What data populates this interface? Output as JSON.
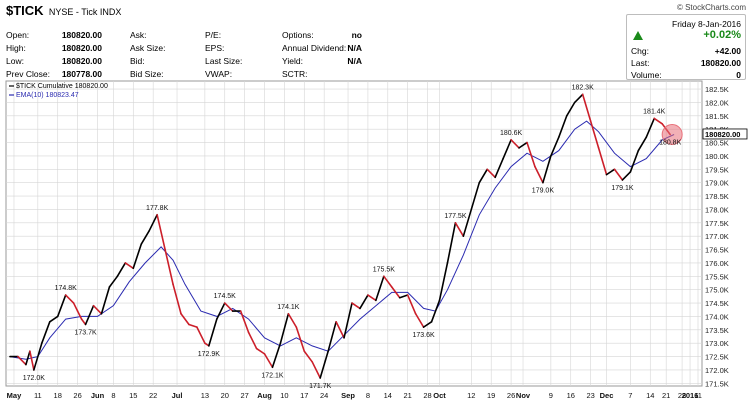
{
  "header": {
    "symbol": "$TICK",
    "description": "NYSE - Tick INDX",
    "brand": "© StockCharts.com"
  },
  "stats": {
    "open_label": "Open:",
    "open": "180820.00",
    "high_label": "High:",
    "high": "180820.00",
    "low_label": "Low:",
    "low": "180820.00",
    "prev_close_label": "Prev Close:",
    "prev_close": "180778.00",
    "ask_label": "Ask:",
    "ask_size_label": "Ask Size:",
    "bid_label": "Bid:",
    "bid_size_label": "Bid Size:",
    "pe_label": "P/E:",
    "eps_label": "EPS:",
    "last_size_label": "Last Size:",
    "vwap_label": "VWAP:",
    "options_label": "Options:",
    "options": "no",
    "annual_dividend_label": "Annual Dividend:",
    "annual_dividend": "N/A",
    "yield_label": "Yield:",
    "yield": "N/A",
    "sctr_label": "SCTR:"
  },
  "quote": {
    "day": "Friday  8-Jan-2016",
    "change_pct": "+0.02%",
    "chg_label": "Chg:",
    "chg": "+42.00",
    "last_label": "Last:",
    "last": "180820.00",
    "volume_label": "Volume:",
    "volume": "0",
    "up_color": "#1a8a1a"
  },
  "chart_data": {
    "type": "line",
    "legend": [
      {
        "text": "$TICK Cumulative 180820.00",
        "color": "#000000"
      },
      {
        "text": "EMA(10) 180823.47",
        "color": "#2a2ab0"
      }
    ],
    "colors": {
      "up": "#000000",
      "down": "#cc1f2a",
      "ema": "#2a2ab0",
      "grid": "#d6d6d6",
      "highlight": "#e8707a"
    },
    "ylim": [
      171.4,
      182.8
    ],
    "yticks": [
      "171.5K",
      "172.0K",
      "172.5K",
      "173.0K",
      "173.5K",
      "174.0K",
      "174.5K",
      "175.0K",
      "175.5K",
      "176.0K",
      "176.5K",
      "177.0K",
      "177.5K",
      "178.0K",
      "178.5K",
      "179.0K",
      "179.5K",
      "180.0K",
      "180.5K",
      "181.0K",
      "181.5K",
      "182.0K",
      "182.5K"
    ],
    "ytick_values": [
      171.5,
      172.0,
      172.5,
      173.0,
      173.5,
      174.0,
      174.5,
      175.0,
      175.5,
      176.0,
      176.5,
      177.0,
      177.5,
      178.0,
      178.5,
      179.0,
      179.5,
      180.0,
      180.5,
      181.0,
      181.5,
      182.0,
      182.5
    ],
    "xlim": [
      0,
      171
    ],
    "xticks": [
      {
        "x": 1,
        "label": "May",
        "bold": true
      },
      {
        "x": 7,
        "label": "11"
      },
      {
        "x": 12,
        "label": "18"
      },
      {
        "x": 17,
        "label": "26"
      },
      {
        "x": 22,
        "label": "Jun",
        "bold": true
      },
      {
        "x": 26,
        "label": "8"
      },
      {
        "x": 31,
        "label": "15"
      },
      {
        "x": 36,
        "label": "22"
      },
      {
        "x": 42,
        "label": "Jul",
        "bold": true
      },
      {
        "x": 49,
        "label": "13"
      },
      {
        "x": 54,
        "label": "20"
      },
      {
        "x": 59,
        "label": "27"
      },
      {
        "x": 64,
        "label": "Aug",
        "bold": true
      },
      {
        "x": 69,
        "label": "10"
      },
      {
        "x": 74,
        "label": "17"
      },
      {
        "x": 79,
        "label": "24"
      },
      {
        "x": 85,
        "label": "Sep",
        "bold": true
      },
      {
        "x": 90,
        "label": "8"
      },
      {
        "x": 95,
        "label": "14"
      },
      {
        "x": 100,
        "label": "21"
      },
      {
        "x": 105,
        "label": "28"
      },
      {
        "x": 108,
        "label": "Oct",
        "bold": true
      },
      {
        "x": 116,
        "label": "12"
      },
      {
        "x": 121,
        "label": "19"
      },
      {
        "x": 126,
        "label": "26"
      },
      {
        "x": 129,
        "label": "Nov",
        "bold": true
      },
      {
        "x": 136,
        "label": "9"
      },
      {
        "x": 141,
        "label": "16"
      },
      {
        "x": 146,
        "label": "23"
      },
      {
        "x": 150,
        "label": "Dec",
        "bold": true
      },
      {
        "x": 156,
        "label": "7"
      },
      {
        "x": 161,
        "label": "14"
      },
      {
        "x": 165,
        "label": "21"
      },
      {
        "x": 169,
        "label": "28"
      },
      {
        "x": 171,
        "label": "2016",
        "bold": true
      }
    ],
    "x_extra_ticks": [
      {
        "x": 173,
        "label": "11"
      }
    ],
    "x_extended": 173,
    "series": [
      {
        "x": 0,
        "y": 172.5
      },
      {
        "x": 2,
        "y": 172.5
      },
      {
        "x": 4,
        "y": 172.2
      },
      {
        "x": 5,
        "y": 172.7
      },
      {
        "x": 6,
        "y": 172.0
      },
      {
        "x": 8,
        "y": 173.0
      },
      {
        "x": 10,
        "y": 173.8
      },
      {
        "x": 12,
        "y": 174.0
      },
      {
        "x": 14,
        "y": 174.8
      },
      {
        "x": 16,
        "y": 174.5
      },
      {
        "x": 17,
        "y": 174.2
      },
      {
        "x": 18,
        "y": 173.9
      },
      {
        "x": 19,
        "y": 173.7
      },
      {
        "x": 21,
        "y": 174.4
      },
      {
        "x": 23,
        "y": 174.1
      },
      {
        "x": 25,
        "y": 175.1
      },
      {
        "x": 27,
        "y": 175.5
      },
      {
        "x": 29,
        "y": 176.0
      },
      {
        "x": 31,
        "y": 175.8
      },
      {
        "x": 33,
        "y": 176.7
      },
      {
        "x": 35,
        "y": 177.2
      },
      {
        "x": 37,
        "y": 177.8
      },
      {
        "x": 39,
        "y": 176.5
      },
      {
        "x": 41,
        "y": 175.2
      },
      {
        "x": 43,
        "y": 174.1
      },
      {
        "x": 45,
        "y": 173.7
      },
      {
        "x": 47,
        "y": 173.6
      },
      {
        "x": 49,
        "y": 173.0
      },
      {
        "x": 50,
        "y": 172.9
      },
      {
        "x": 52,
        "y": 173.9
      },
      {
        "x": 54,
        "y": 174.5
      },
      {
        "x": 56,
        "y": 174.2
      },
      {
        "x": 58,
        "y": 174.2
      },
      {
        "x": 60,
        "y": 173.4
      },
      {
        "x": 62,
        "y": 172.8
      },
      {
        "x": 64,
        "y": 172.6
      },
      {
        "x": 66,
        "y": 172.1
      },
      {
        "x": 68,
        "y": 173.0
      },
      {
        "x": 70,
        "y": 174.1
      },
      {
        "x": 72,
        "y": 173.6
      },
      {
        "x": 74,
        "y": 172.7
      },
      {
        "x": 76,
        "y": 172.3
      },
      {
        "x": 78,
        "y": 171.7
      },
      {
        "x": 80,
        "y": 172.7
      },
      {
        "x": 82,
        "y": 173.8
      },
      {
        "x": 84,
        "y": 173.2
      },
      {
        "x": 86,
        "y": 174.5
      },
      {
        "x": 88,
        "y": 174.3
      },
      {
        "x": 90,
        "y": 174.8
      },
      {
        "x": 92,
        "y": 174.6
      },
      {
        "x": 94,
        "y": 175.5
      },
      {
        "x": 96,
        "y": 175.1
      },
      {
        "x": 98,
        "y": 174.7
      },
      {
        "x": 100,
        "y": 174.8
      },
      {
        "x": 102,
        "y": 174.1
      },
      {
        "x": 104,
        "y": 173.6
      },
      {
        "x": 106,
        "y": 173.8
      },
      {
        "x": 108,
        "y": 174.6
      },
      {
        "x": 110,
        "y": 176.0
      },
      {
        "x": 112,
        "y": 177.5
      },
      {
        "x": 114,
        "y": 177.0
      },
      {
        "x": 116,
        "y": 178.0
      },
      {
        "x": 118,
        "y": 179.0
      },
      {
        "x": 120,
        "y": 179.5
      },
      {
        "x": 122,
        "y": 179.2
      },
      {
        "x": 124,
        "y": 179.9
      },
      {
        "x": 126,
        "y": 180.6
      },
      {
        "x": 128,
        "y": 180.3
      },
      {
        "x": 130,
        "y": 180.5
      },
      {
        "x": 132,
        "y": 179.6
      },
      {
        "x": 134,
        "y": 179.0
      },
      {
        "x": 136,
        "y": 180.0
      },
      {
        "x": 138,
        "y": 180.7
      },
      {
        "x": 140,
        "y": 181.5
      },
      {
        "x": 142,
        "y": 182.0
      },
      {
        "x": 144,
        "y": 182.3
      },
      {
        "x": 146,
        "y": 181.3
      },
      {
        "x": 148,
        "y": 180.3
      },
      {
        "x": 150,
        "y": 179.3
      },
      {
        "x": 152,
        "y": 179.5
      },
      {
        "x": 154,
        "y": 179.1
      },
      {
        "x": 156,
        "y": 179.4
      },
      {
        "x": 158,
        "y": 180.2
      },
      {
        "x": 160,
        "y": 180.7
      },
      {
        "x": 162,
        "y": 181.4
      },
      {
        "x": 164,
        "y": 181.2
      },
      {
        "x": 166,
        "y": 180.8
      }
    ],
    "ema": [
      {
        "x": 0,
        "y": 172.5
      },
      {
        "x": 4,
        "y": 172.4
      },
      {
        "x": 7,
        "y": 172.5
      },
      {
        "x": 10,
        "y": 173.2
      },
      {
        "x": 14,
        "y": 173.9
      },
      {
        "x": 18,
        "y": 174.0
      },
      {
        "x": 22,
        "y": 174.0
      },
      {
        "x": 26,
        "y": 174.4
      },
      {
        "x": 30,
        "y": 175.3
      },
      {
        "x": 34,
        "y": 176.0
      },
      {
        "x": 38,
        "y": 176.6
      },
      {
        "x": 41,
        "y": 176.1
      },
      {
        "x": 44,
        "y": 175.2
      },
      {
        "x": 48,
        "y": 174.2
      },
      {
        "x": 52,
        "y": 174.0
      },
      {
        "x": 56,
        "y": 174.3
      },
      {
        "x": 60,
        "y": 173.9
      },
      {
        "x": 64,
        "y": 173.2
      },
      {
        "x": 68,
        "y": 172.9
      },
      {
        "x": 72,
        "y": 173.2
      },
      {
        "x": 76,
        "y": 172.9
      },
      {
        "x": 80,
        "y": 172.7
      },
      {
        "x": 84,
        "y": 173.3
      },
      {
        "x": 88,
        "y": 173.9
      },
      {
        "x": 92,
        "y": 174.4
      },
      {
        "x": 96,
        "y": 174.9
      },
      {
        "x": 100,
        "y": 174.9
      },
      {
        "x": 104,
        "y": 174.3
      },
      {
        "x": 107,
        "y": 174.2
      },
      {
        "x": 110,
        "y": 175.0
      },
      {
        "x": 114,
        "y": 176.3
      },
      {
        "x": 118,
        "y": 177.8
      },
      {
        "x": 122,
        "y": 178.8
      },
      {
        "x": 126,
        "y": 179.6
      },
      {
        "x": 130,
        "y": 180.1
      },
      {
        "x": 134,
        "y": 179.8
      },
      {
        "x": 138,
        "y": 180.2
      },
      {
        "x": 142,
        "y": 181.0
      },
      {
        "x": 145,
        "y": 181.3
      },
      {
        "x": 148,
        "y": 180.9
      },
      {
        "x": 152,
        "y": 180.1
      },
      {
        "x": 156,
        "y": 179.6
      },
      {
        "x": 160,
        "y": 179.9
      },
      {
        "x": 164,
        "y": 180.6
      },
      {
        "x": 167,
        "y": 180.8
      }
    ],
    "annotations": [
      {
        "x": 6,
        "y": 172.0,
        "text": "172.0K",
        "pos": "below"
      },
      {
        "x": 14,
        "y": 174.8,
        "text": "174.8K",
        "pos": "above"
      },
      {
        "x": 19,
        "y": 173.7,
        "text": "173.7K",
        "pos": "below"
      },
      {
        "x": 37,
        "y": 177.8,
        "text": "177.8K",
        "pos": "above"
      },
      {
        "x": 50,
        "y": 172.9,
        "text": "172.9K",
        "pos": "below"
      },
      {
        "x": 54,
        "y": 174.5,
        "text": "174.5K",
        "pos": "above"
      },
      {
        "x": 66,
        "y": 172.1,
        "text": "172.1K",
        "pos": "below"
      },
      {
        "x": 70,
        "y": 174.1,
        "text": "174.1K",
        "pos": "above"
      },
      {
        "x": 78,
        "y": 171.7,
        "text": "171.7K",
        "pos": "below"
      },
      {
        "x": 94,
        "y": 175.5,
        "text": "175.5K",
        "pos": "above"
      },
      {
        "x": 104,
        "y": 173.6,
        "text": "173.6K",
        "pos": "below"
      },
      {
        "x": 112,
        "y": 177.5,
        "text": "177.5K",
        "pos": "above"
      },
      {
        "x": 126,
        "y": 180.6,
        "text": "180.6K",
        "pos": "above"
      },
      {
        "x": 134,
        "y": 179.0,
        "text": "179.0K",
        "pos": "below"
      },
      {
        "x": 144,
        "y": 182.3,
        "text": "182.3K",
        "pos": "above"
      },
      {
        "x": 154,
        "y": 179.1,
        "text": "179.1K",
        "pos": "below"
      },
      {
        "x": 162,
        "y": 181.4,
        "text": "181.4K",
        "pos": "above"
      },
      {
        "x": 166,
        "y": 180.8,
        "text": "180.8K",
        "pos": "below"
      }
    ],
    "last_value_label": "180820.00",
    "last_value": 180.82
  }
}
